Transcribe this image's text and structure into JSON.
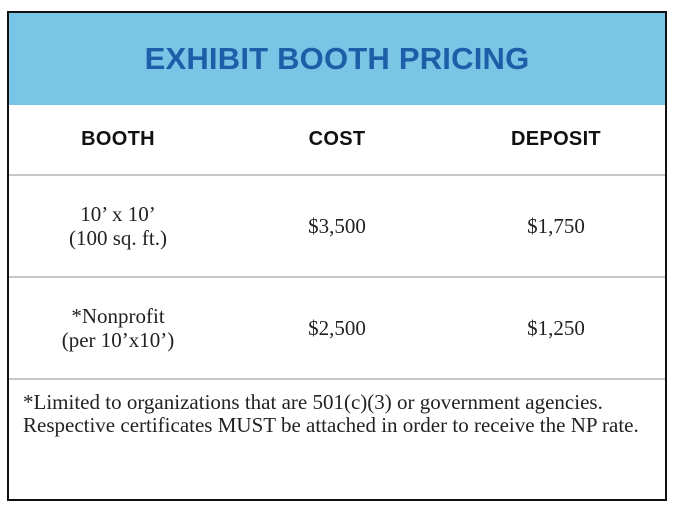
{
  "title": "EXHIBIT BOOTH PRICING",
  "columns": [
    "BOOTH",
    "COST",
    "DEPOSIT"
  ],
  "rows": [
    {
      "booth_line1": "10’ x 10’",
      "booth_line2": "(100 sq. ft.)",
      "cost": "$3,500",
      "deposit": "$1,750"
    },
    {
      "booth_line1": "*Nonprofit",
      "booth_line2": "(per 10’x10’)",
      "cost": "$2,500",
      "deposit": "$1,250"
    }
  ],
  "footnote": "*Limited to organizations that are 501(c)(3) or government agencies. Respective certificates MUST be attached in order to receive the NP rate.",
  "colors": {
    "header_background": "#79c5e6",
    "title_text": "#1d5ea8",
    "border": "#111111",
    "divider": "#c7c7c7"
  }
}
